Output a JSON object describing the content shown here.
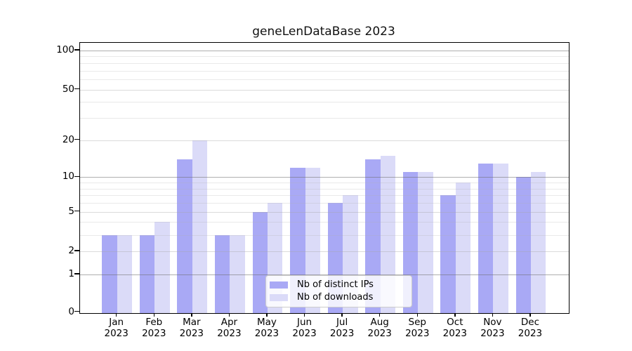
{
  "title": "geneLenDataBase 2023",
  "chart_data": {
    "type": "bar",
    "categories": [
      "Jan 2023",
      "Feb 2023",
      "Mar 2023",
      "Apr 2023",
      "May 2023",
      "Jun 2023",
      "Jul 2023",
      "Aug 2023",
      "Sep 2023",
      "Oct 2023",
      "Nov 2023",
      "Dec 2023"
    ],
    "series": [
      {
        "name": "Nb of distinct IPs",
        "color": "#a9a9f5",
        "values": [
          3,
          3,
          14,
          3,
          5,
          12,
          6,
          14,
          11,
          7,
          13,
          10
        ]
      },
      {
        "name": "Nb of downloads",
        "color": "#dbdbf8",
        "values": [
          3,
          4,
          20,
          3,
          6,
          12,
          7,
          15,
          11,
          9,
          13,
          11
        ]
      }
    ],
    "title": "geneLenDataBase 2023",
    "xlabel": "",
    "ylabel": "",
    "yscale": "log(value+1)",
    "ylim": [
      0,
      115
    ],
    "yticks_major": [
      0,
      1,
      2,
      5,
      10,
      20,
      50,
      100
    ],
    "yticks_minor": [
      3,
      4,
      6,
      7,
      8,
      9,
      30,
      40,
      60,
      70,
      80,
      90
    ],
    "decade_ticks": [
      1,
      10,
      100
    ],
    "grid": true,
    "legend_position": "lower center"
  },
  "legend": {
    "items": [
      {
        "label": "Nb of distinct IPs",
        "swatch": "#a9a9f5"
      },
      {
        "label": "Nb of downloads",
        "swatch": "#dbdbf8"
      }
    ]
  },
  "colors": {
    "bar_distinct_ips": "#a9a9f5",
    "bar_downloads": "#dbdbf8",
    "spine": "#000000",
    "grid_decade": "#6e6e6e",
    "grid_major": "#a5a5a5",
    "grid_minor": "#afafaf",
    "background": "#ffffff"
  }
}
